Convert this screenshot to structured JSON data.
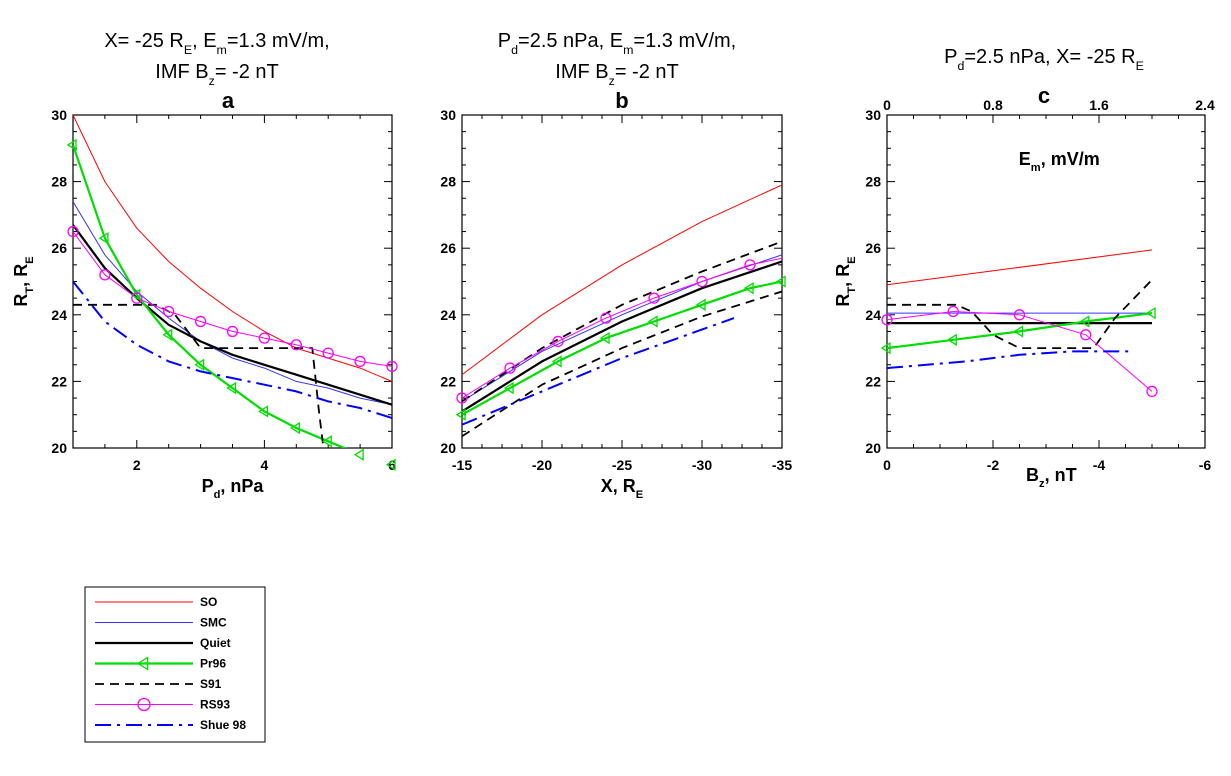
{
  "panels": [
    {
      "id": "a",
      "header": {
        "line1": "X= -25 R",
        "line1_sub": "E",
        "line1_rest": ", E",
        "line1_sub2": "m",
        "line1_end": "=1.3 mV/m,",
        "line2": "IMF B",
        "line2_sub": "z",
        "line2_end": "= -2 nT"
      },
      "label": "a",
      "xaxis": {
        "label": "P",
        "label_sub": "d",
        "label_rest": ", nPa",
        "ticks": [
          "2",
          "4",
          "6"
        ]
      },
      "yaxis": {
        "label": "R",
        "label_sub": "T",
        "label_rest": ", R",
        "label_sub2": "E",
        "ticks": [
          "20",
          "22",
          "24",
          "26",
          "28",
          "30"
        ]
      }
    },
    {
      "id": "b",
      "header": {
        "line1": "P",
        "line1_sub": "d",
        "line1_rest": "=2.5 nPa, E",
        "line1_sub2": "m",
        "line1_end": "=1.3 mV/m,",
        "line2": "IMF B",
        "line2_sub": "z",
        "line2_end": "= -2 nT"
      },
      "label": "b",
      "xaxis": {
        "label": "X, R",
        "label_sub": "E",
        "label_rest": "",
        "ticks": [
          "-15",
          "-20",
          "-25",
          "-30",
          "-35"
        ]
      },
      "yaxis": {
        "ticks": [
          "20",
          "22",
          "24",
          "26",
          "28",
          "30"
        ]
      }
    },
    {
      "id": "c",
      "header": {
        "line1": "P",
        "line1_sub": "d",
        "line1_rest": "=2.5 nPa, X= -25 R",
        "line1_sub2": "E",
        "line1_end": ""
      },
      "label": "c",
      "xaxis": {
        "label": "B",
        "label_sub": "z",
        "label_rest": ", nT",
        "ticks": [
          "0",
          "-2",
          "-4",
          "-6"
        ]
      },
      "top_axis": {
        "label": "E",
        "label_sub": "m",
        "label_rest": ", mV/m",
        "ticks": [
          "0",
          "0.8",
          "1.6",
          "2.4"
        ]
      },
      "yaxis": {
        "label": "R",
        "label_sub": "T",
        "label_rest": ", R",
        "label_sub2": "E",
        "ticks": [
          "20",
          "22",
          "24",
          "26",
          "28",
          "30"
        ]
      }
    }
  ],
  "legend": [
    "SO",
    "SMC",
    "Quiet",
    "Pr96",
    "S91",
    "RS93",
    "Shue 98"
  ],
  "colors": {
    "SO": "#ff0000",
    "SMC": "#3333ff",
    "Quiet": "#000000",
    "Pr96": "#00dd00",
    "S91": "#000000",
    "RS93": "#ff00ff",
    "Shue 98": "#0000ff"
  },
  "chart_data": [
    {
      "type": "line",
      "xlim": [
        1,
        6
      ],
      "ylim": [
        20,
        30
      ],
      "series": [
        {
          "name": "SO",
          "x": [
            1,
            1.5,
            2,
            2.5,
            3,
            3.5,
            4,
            4.5,
            5,
            5.5,
            6
          ],
          "y": [
            30,
            28.0,
            26.6,
            25.6,
            24.8,
            24.1,
            23.5,
            23.0,
            22.7,
            22.4,
            22.0
          ]
        },
        {
          "name": "SMC",
          "x": [
            1,
            1.5,
            2,
            2.5,
            3,
            3.5,
            4,
            4.5,
            5,
            5.5,
            6
          ],
          "y": [
            27.4,
            25.8,
            24.7,
            23.9,
            23.2,
            22.7,
            22.4,
            22.0,
            21.8,
            21.5,
            21.3
          ]
        },
        {
          "name": "Quiet",
          "x": [
            1,
            1.5,
            2,
            2.5,
            3,
            3.5,
            4,
            4.5,
            5,
            5.5,
            6
          ],
          "y": [
            26.7,
            25.4,
            24.5,
            23.7,
            23.2,
            22.8,
            22.5,
            22.2,
            21.9,
            21.6,
            21.3
          ]
        },
        {
          "name": "Pr96",
          "x": [
            1,
            1.5,
            2,
            2.5,
            3,
            3.5,
            4,
            4.5,
            5,
            5.5,
            6
          ],
          "y": [
            29.1,
            26.3,
            24.6,
            23.4,
            22.5,
            21.8,
            21.1,
            20.6,
            20.2,
            19.8,
            19.5
          ]
        },
        {
          "name": "S91",
          "x": [
            1,
            1.5,
            2,
            2.3,
            2.6,
            3,
            3.5,
            4,
            4.5,
            4.75,
            4.85,
            4.95,
            5.5,
            6
          ],
          "y": [
            24.3,
            24.3,
            24.3,
            24.3,
            24.0,
            23.0,
            23.0,
            23.0,
            23.0,
            23.0,
            21.2,
            19.6,
            19.6,
            19.6
          ]
        },
        {
          "name": "RS93",
          "x": [
            1,
            1.5,
            2,
            2.5,
            3,
            3.5,
            4,
            4.5,
            5,
            5.5,
            6
          ],
          "y": [
            26.5,
            25.2,
            24.5,
            24.1,
            23.8,
            23.5,
            23.3,
            23.1,
            22.85,
            22.6,
            22.45
          ]
        },
        {
          "name": "Shue 98",
          "x": [
            1,
            1.5,
            2,
            2.5,
            3,
            3.5,
            4,
            4.5,
            5,
            5.5,
            6
          ],
          "y": [
            25.0,
            23.8,
            23.1,
            22.6,
            22.3,
            22.1,
            21.9,
            21.7,
            21.4,
            21.2,
            20.9
          ]
        }
      ],
      "markers": {
        "Pr96": [
          1,
          1.5,
          2,
          2.5,
          3,
          3.5,
          4,
          4.5,
          5,
          5.5,
          6
        ],
        "RS93": [
          1,
          1.5,
          2,
          2.5,
          3,
          3.5,
          4,
          4.5,
          5,
          5.5,
          6
        ]
      }
    },
    {
      "type": "line",
      "xlim": [
        -15,
        -35
      ],
      "ylim": [
        20,
        30
      ],
      "series": [
        {
          "name": "SO",
          "x": [
            -15,
            -20,
            -25,
            -30,
            -35
          ],
          "y": [
            22.2,
            24.0,
            25.5,
            26.8,
            27.9
          ]
        },
        {
          "name": "SMC",
          "x": [
            -15,
            -20,
            -25,
            -30,
            -35
          ],
          "y": [
            21.4,
            22.9,
            24.0,
            25.0,
            25.8
          ]
        },
        {
          "name": "Quiet",
          "x": [
            -15,
            -20,
            -25,
            -30,
            -35
          ],
          "y": [
            21.1,
            22.6,
            23.8,
            24.8,
            25.6
          ]
        },
        {
          "name": "Pr96",
          "x": [
            -15,
            -18,
            -21,
            -24,
            -27,
            -30,
            -33,
            -35
          ],
          "y": [
            21.0,
            21.8,
            22.6,
            23.3,
            23.8,
            24.3,
            24.8,
            25.0
          ]
        },
        {
          "name": "S91",
          "x": [
            -15,
            -20,
            -25,
            -30,
            -35
          ],
          "y": [
            20.35,
            21.9,
            23.0,
            23.95,
            24.7
          ]
        },
        {
          "name": "S91",
          "x": [
            -15,
            -20,
            -25,
            -30,
            -35
          ],
          "y": [
            21.4,
            23.0,
            24.3,
            25.3,
            26.2
          ]
        },
        {
          "name": "RS93",
          "x": [
            -15,
            -18,
            -21,
            -24,
            -27,
            -30,
            -33,
            -35
          ],
          "y": [
            21.5,
            22.4,
            23.2,
            23.9,
            24.5,
            25.0,
            25.5,
            25.7
          ]
        },
        {
          "name": "Shue 98",
          "x": [
            -15,
            -20,
            -25,
            -32
          ],
          "y": [
            20.7,
            21.7,
            22.7,
            23.9
          ]
        }
      ],
      "markers": {
        "Pr96": [
          -15,
          -18,
          -21,
          -24,
          -27,
          -30,
          -33,
          -35
        ],
        "RS93": [
          -15,
          -18,
          -21,
          -24,
          -27,
          -30,
          -33
        ]
      }
    },
    {
      "type": "line",
      "xlim": [
        0,
        -6
      ],
      "ylim": [
        20,
        30
      ],
      "top_xlim": [
        0,
        2.4
      ],
      "series": [
        {
          "name": "SO",
          "x": [
            0,
            -5
          ],
          "y": [
            24.9,
            25.95
          ]
        },
        {
          "name": "SMC",
          "x": [
            0,
            -5
          ],
          "y": [
            24.05,
            24.05
          ]
        },
        {
          "name": "Quiet",
          "x": [
            0,
            -5
          ],
          "y": [
            23.75,
            23.75
          ]
        },
        {
          "name": "Pr96",
          "x": [
            0,
            -1.25,
            -2.5,
            -3.75,
            -5
          ],
          "y": [
            23.0,
            23.25,
            23.5,
            23.8,
            24.05
          ]
        },
        {
          "name": "S91",
          "x": [
            0,
            -1.3,
            -1.6,
            -2.0,
            -2.5,
            -3.75,
            -3.9,
            -4.3,
            -5
          ],
          "y": [
            24.3,
            24.3,
            24.1,
            23.4,
            23.0,
            23.0,
            23.0,
            23.9,
            25.05
          ]
        },
        {
          "name": "RS93",
          "x": [
            0,
            -1.25,
            -2.5,
            -3.75,
            -5
          ],
          "y": [
            23.85,
            24.1,
            24.0,
            23.4,
            21.7
          ]
        },
        {
          "name": "Shue 98",
          "x": [
            0,
            -1.5,
            -2.5,
            -3.5,
            -4.6
          ],
          "y": [
            22.4,
            22.6,
            22.8,
            22.9,
            22.9
          ]
        }
      ],
      "markers": {
        "Pr96": [
          0,
          -1.25,
          -2.5,
          -3.75,
          -5
        ],
        "RS93": [
          0,
          -1.25,
          -2.5,
          -3.75,
          -5
        ]
      }
    }
  ]
}
